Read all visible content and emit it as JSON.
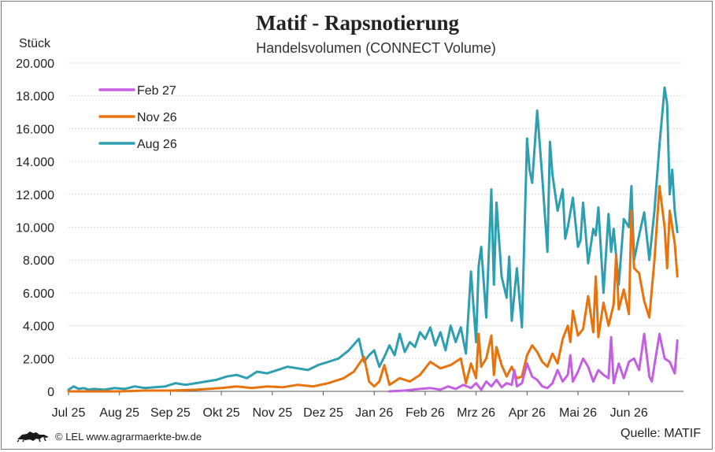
{
  "header": {
    "title": "Matif - Rapsnotierung",
    "subtitle": "Handelsvolumen (CONNECT Volume)",
    "unit": "Stück"
  },
  "footer": {
    "copyright": "© LEL www.agrarmaerkte-bw.de",
    "source": "Quelle: MATIF",
    "logo_icon": "lion-logo-icon"
  },
  "chart_data": {
    "type": "line",
    "title": "Matif - Rapsnotierung",
    "subtitle": "Handelsvolumen (CONNECT Volume)",
    "ylabel": "Stück",
    "ylim": [
      0,
      20000
    ],
    "yticks": [
      0,
      2000,
      4000,
      6000,
      8000,
      10000,
      12000,
      14000,
      16000,
      18000,
      20000
    ],
    "ytick_labels": [
      "0",
      "2.000",
      "4.000",
      "6.000",
      "8.000",
      "10.000",
      "12.000",
      "14.000",
      "16.000",
      "18.000",
      "20.000"
    ],
    "xtick_labels": [
      "Jul 25",
      "Aug 25",
      "Sep 25",
      "Okt 25",
      "Nov 25",
      "Dez 25",
      "Jan 26",
      "Feb 26",
      "Mrz 26",
      "Apr 26",
      "Mai 26",
      "Jun 26"
    ],
    "xlim": [
      0,
      12.4
    ],
    "grid": true,
    "legend": "top-left",
    "series": [
      {
        "name": "Feb 27",
        "color": "#c35fe0",
        "x": [
          6.3,
          6.6,
          6.9,
          7.1,
          7.3,
          7.45,
          7.6,
          7.75,
          7.9,
          8.0,
          8.1,
          8.2,
          8.3,
          8.4,
          8.5,
          8.6,
          8.7,
          8.75,
          8.8,
          8.9,
          9.0,
          9.1,
          9.2,
          9.3,
          9.4,
          9.5,
          9.6,
          9.7,
          9.8,
          9.85,
          9.9,
          10.0,
          10.1,
          10.2,
          10.3,
          10.4,
          10.5,
          10.6,
          10.65,
          10.7,
          10.8,
          10.9,
          11.0,
          11.1,
          11.2,
          11.3,
          11.4,
          11.45,
          11.5,
          11.6,
          11.7,
          11.8,
          11.9,
          11.95
        ],
        "values": [
          0,
          50,
          150,
          200,
          100,
          300,
          150,
          400,
          200,
          500,
          100,
          600,
          300,
          700,
          250,
          500,
          400,
          1300,
          300,
          500,
          1700,
          900,
          700,
          300,
          200,
          500,
          1300,
          600,
          1000,
          2200,
          600,
          1200,
          2000,
          1500,
          600,
          1300,
          1000,
          800,
          3300,
          500,
          1700,
          800,
          1800,
          2000,
          1300,
          3500,
          900,
          600,
          1600,
          3500,
          2000,
          1800,
          1100,
          3100
        ]
      },
      {
        "name": "Nov 26",
        "color": "#e8720c",
        "x": [
          0,
          0.5,
          1.0,
          1.5,
          2.0,
          2.5,
          3.0,
          3.3,
          3.6,
          3.9,
          4.2,
          4.5,
          4.8,
          5.1,
          5.4,
          5.6,
          5.8,
          5.9,
          6.0,
          6.1,
          6.2,
          6.3,
          6.5,
          6.7,
          6.9,
          7.1,
          7.3,
          7.5,
          7.7,
          7.8,
          7.9,
          8.0,
          8.05,
          8.1,
          8.2,
          8.3,
          8.35,
          8.4,
          8.5,
          8.6,
          8.7,
          8.8,
          8.9,
          9.0,
          9.1,
          9.2,
          9.3,
          9.4,
          9.5,
          9.6,
          9.7,
          9.8,
          9.85,
          9.9,
          10.0,
          10.1,
          10.2,
          10.3,
          10.35,
          10.4,
          10.5,
          10.6,
          10.7,
          10.75,
          10.8,
          10.9,
          11.0,
          11.05,
          11.1,
          11.2,
          11.3,
          11.4,
          11.5,
          11.6,
          11.7,
          11.75,
          11.8,
          11.9,
          11.95
        ],
        "values": [
          0,
          0,
          0,
          50,
          50,
          100,
          200,
          300,
          200,
          300,
          250,
          400,
          300,
          500,
          800,
          1200,
          2100,
          600,
          300,
          600,
          1600,
          400,
          800,
          600,
          1000,
          1800,
          1400,
          1600,
          2000,
          500,
          1700,
          800,
          3500,
          1500,
          2000,
          3400,
          1000,
          2700,
          1600,
          900,
          1500,
          800,
          900,
          2200,
          2800,
          2400,
          1800,
          1500,
          2300,
          1700,
          3200,
          4000,
          3000,
          4900,
          3400,
          3800,
          5800,
          3600,
          7000,
          3300,
          5400,
          4000,
          5300,
          8300,
          5000,
          6200,
          4700,
          11000,
          7500,
          7200,
          5500,
          4500,
          8000,
          12500,
          10000,
          7500,
          11000,
          9000,
          7000
        ]
      },
      {
        "name": "Aug 26",
        "color": "#2e9fb0",
        "x": [
          0,
          0.1,
          0.2,
          0.3,
          0.4,
          0.5,
          0.7,
          0.9,
          1.1,
          1.3,
          1.5,
          1.7,
          1.9,
          2.1,
          2.3,
          2.5,
          2.7,
          2.9,
          3.1,
          3.3,
          3.5,
          3.7,
          3.9,
          4.1,
          4.3,
          4.5,
          4.7,
          4.9,
          5.1,
          5.3,
          5.5,
          5.7,
          5.8,
          5.9,
          6.0,
          6.1,
          6.2,
          6.3,
          6.4,
          6.5,
          6.6,
          6.7,
          6.8,
          6.9,
          7.0,
          7.1,
          7.2,
          7.3,
          7.4,
          7.5,
          7.6,
          7.7,
          7.8,
          7.9,
          8.0,
          8.05,
          8.1,
          8.2,
          8.3,
          8.35,
          8.4,
          8.5,
          8.6,
          8.65,
          8.7,
          8.8,
          8.9,
          9.0,
          9.05,
          9.1,
          9.2,
          9.3,
          9.4,
          9.45,
          9.5,
          9.6,
          9.7,
          9.75,
          9.8,
          9.9,
          10.0,
          10.05,
          10.1,
          10.2,
          10.3,
          10.35,
          10.4,
          10.5,
          10.6,
          10.65,
          10.7,
          10.8,
          10.9,
          11.0,
          11.05,
          11.1,
          11.2,
          11.3,
          11.4,
          11.5,
          11.6,
          11.7,
          11.75,
          11.8,
          11.85,
          11.9,
          11.95
        ],
        "values": [
          100,
          300,
          150,
          200,
          100,
          150,
          100,
          200,
          150,
          300,
          200,
          250,
          300,
          500,
          400,
          500,
          600,
          700,
          900,
          1000,
          800,
          1200,
          1100,
          1300,
          1500,
          1400,
          1300,
          1600,
          1800,
          2000,
          2500,
          3200,
          1800,
          2200,
          2500,
          1500,
          2100,
          2800,
          2200,
          3500,
          2400,
          3000,
          2700,
          3600,
          3200,
          3900,
          2800,
          3600,
          2500,
          4000,
          3000,
          3900,
          2300,
          7300,
          3000,
          7600,
          8800,
          4500,
          12300,
          6500,
          11500,
          7000,
          5700,
          8200,
          4300,
          7500,
          3900,
          15400,
          13500,
          12700,
          17100,
          13000,
          8500,
          15200,
          13200,
          11000,
          12300,
          9300,
          10000,
          11800,
          8800,
          9200,
          11500,
          7800,
          9900,
          9500,
          11200,
          6000,
          10800,
          8500,
          9900,
          6500,
          10500,
          10000,
          12500,
          8000,
          9500,
          10900,
          8000,
          11000,
          15000,
          18500,
          17500,
          12000,
          13500,
          11000,
          9700
        ]
      }
    ]
  }
}
